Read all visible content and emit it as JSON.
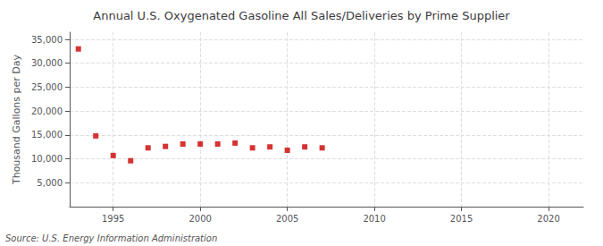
{
  "chart_data": {
    "type": "scatter",
    "title": "Annual U.S. Oxygenated Gasoline All Sales/Deliveries by Prime Supplier",
    "ylabel": "Thousand Gallons per Day",
    "annotations": [
      "Source: U.S. Energy Information Administration"
    ],
    "x": [
      1993,
      1994,
      1995,
      1996,
      1997,
      1998,
      1999,
      2000,
      2001,
      2002,
      2003,
      2004,
      2005,
      2006,
      2007
    ],
    "values": [
      33000,
      14800,
      10700,
      9600,
      12300,
      12600,
      13100,
      13100,
      13100,
      13300,
      12300,
      12500,
      11800,
      12500,
      12300
    ],
    "color": "#cc0000",
    "marker": "square",
    "xlim": [
      1992.5,
      2022
    ],
    "xticks": [
      1995,
      2000,
      2005,
      2010,
      2015,
      2020
    ],
    "ylim": [
      0,
      36500
    ],
    "yticks": [
      {
        "value": 5000,
        "label": "5,000"
      },
      {
        "value": 10000,
        "label": "10,000"
      },
      {
        "value": 15000,
        "label": "15,000"
      },
      {
        "value": 20000,
        "label": "20,000"
      },
      {
        "value": 25000,
        "label": "25,000"
      },
      {
        "value": 30000,
        "label": "30,000"
      },
      {
        "value": 35000,
        "label": "35,000"
      }
    ],
    "grid": true
  }
}
